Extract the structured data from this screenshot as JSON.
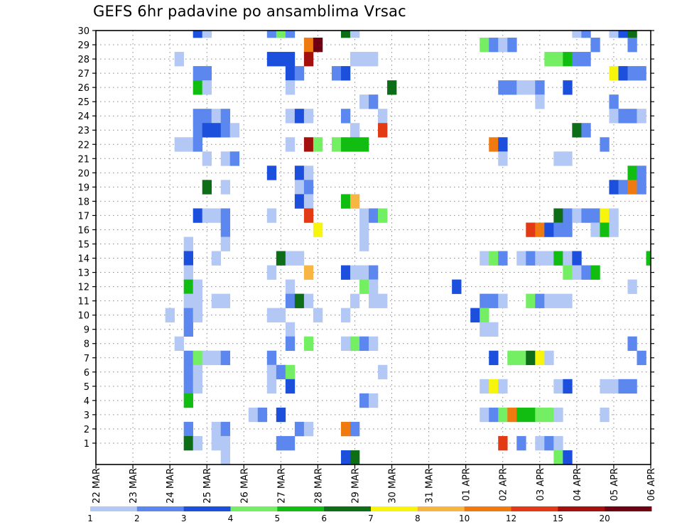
{
  "title": "GEFS 6hr padavine po ansamblima Vrsac",
  "chart_data": {
    "type": "heatmap",
    "title": "GEFS 6hr padavine po ansamblima Vrsac",
    "y_range": [
      0,
      30
    ],
    "y_ticks": [
      1,
      2,
      3,
      4,
      5,
      6,
      7,
      8,
      9,
      10,
      11,
      12,
      13,
      14,
      15,
      16,
      17,
      18,
      19,
      20,
      21,
      22,
      23,
      24,
      25,
      26,
      27,
      28,
      29,
      30
    ],
    "x_range_steps": [
      0,
      60
    ],
    "x_ticks": [
      {
        "step": 0,
        "label": "22 MAR"
      },
      {
        "step": 4,
        "label": "23 MAR"
      },
      {
        "step": 8,
        "label": "24 MAR"
      },
      {
        "step": 12,
        "label": "25 MAR"
      },
      {
        "step": 16,
        "label": "26 MAR"
      },
      {
        "step": 20,
        "label": "27 MAR"
      },
      {
        "step": 24,
        "label": "28 MAR"
      },
      {
        "step": 28,
        "label": "29 MAR"
      },
      {
        "step": 32,
        "label": "30 MAR"
      },
      {
        "step": 36,
        "label": "31 MAR"
      },
      {
        "step": 40,
        "label": "01 APR"
      },
      {
        "step": 44,
        "label": "02 APR"
      },
      {
        "step": 48,
        "label": "03 APR"
      },
      {
        "step": 52,
        "label": "04 APR"
      },
      {
        "step": 56,
        "label": "05 APR"
      },
      {
        "step": 60,
        "label": "06 APR"
      }
    ],
    "grid": true,
    "legend": "bottom",
    "colorbar": {
      "boundaries": [
        "1",
        "2",
        "3",
        "4",
        "5",
        "6",
        "7",
        "8",
        "10",
        "12",
        "15",
        "20"
      ],
      "colors": [
        "#b3c8f5",
        "#5b87ef",
        "#1b4fdc",
        "#74ee62",
        "#12bd12",
        "#0e6e18",
        "#f7f50b",
        "#f7b543",
        "#ef7b10",
        "#e23a14",
        "#a3100e",
        "#6e0012"
      ]
    },
    "cells": [
      {
        "m": 30,
        "c": [
          [
            11,
            2
          ],
          [
            12,
            0
          ],
          [
            19,
            1
          ],
          [
            20,
            3
          ],
          [
            21,
            1
          ],
          [
            27,
            5
          ],
          [
            28,
            0
          ],
          [
            52,
            0
          ],
          [
            53,
            1
          ],
          [
            56,
            0
          ],
          [
            57,
            2
          ],
          [
            58,
            5
          ]
        ]
      },
      {
        "m": 29,
        "c": [
          [
            23,
            8
          ],
          [
            24,
            11
          ],
          [
            42,
            3
          ],
          [
            43,
            1
          ],
          [
            44,
            0
          ],
          [
            45,
            1
          ],
          [
            54,
            1
          ],
          [
            58,
            1
          ]
        ]
      },
      {
        "m": 28,
        "c": [
          [
            9,
            0
          ],
          [
            19,
            2
          ],
          [
            20,
            2
          ],
          [
            21,
            2
          ],
          [
            23,
            10
          ],
          [
            28,
            0
          ],
          [
            29,
            0
          ],
          [
            30,
            0
          ],
          [
            49,
            3
          ],
          [
            50,
            3
          ],
          [
            51,
            4
          ],
          [
            52,
            1
          ],
          [
            53,
            1
          ]
        ]
      },
      {
        "m": 27,
        "c": [
          [
            11,
            1
          ],
          [
            12,
            1
          ],
          [
            21,
            2
          ],
          [
            22,
            1
          ],
          [
            26,
            1
          ],
          [
            27,
            2
          ],
          [
            56,
            6
          ],
          [
            57,
            2
          ],
          [
            58,
            1
          ],
          [
            59,
            1
          ]
        ]
      },
      {
        "m": 26,
        "c": [
          [
            11,
            4
          ],
          [
            12,
            0
          ],
          [
            21,
            0
          ],
          [
            32,
            5
          ],
          [
            44,
            1
          ],
          [
            45,
            1
          ],
          [
            46,
            0
          ],
          [
            47,
            0
          ],
          [
            48,
            1
          ],
          [
            51,
            2
          ]
        ]
      },
      {
        "m": 25,
        "c": [
          [
            29,
            0
          ],
          [
            30,
            1
          ],
          [
            48,
            0
          ],
          [
            56,
            1
          ]
        ]
      },
      {
        "m": 24,
        "c": [
          [
            11,
            1
          ],
          [
            12,
            1
          ],
          [
            13,
            0
          ],
          [
            14,
            1
          ],
          [
            21,
            0
          ],
          [
            22,
            2
          ],
          [
            23,
            0
          ],
          [
            27,
            1
          ],
          [
            31,
            0
          ],
          [
            56,
            0
          ],
          [
            57,
            1
          ],
          [
            58,
            1
          ],
          [
            59,
            0
          ]
        ]
      },
      {
        "m": 23,
        "c": [
          [
            11,
            1
          ],
          [
            12,
            2
          ],
          [
            13,
            2
          ],
          [
            14,
            1
          ],
          [
            15,
            0
          ],
          [
            28,
            0
          ],
          [
            31,
            9
          ],
          [
            52,
            5
          ],
          [
            53,
            1
          ]
        ]
      },
      {
        "m": 22,
        "c": [
          [
            9,
            0
          ],
          [
            10,
            0
          ],
          [
            11,
            1
          ],
          [
            21,
            0
          ],
          [
            23,
            10
          ],
          [
            24,
            3
          ],
          [
            26,
            3
          ],
          [
            27,
            4
          ],
          [
            28,
            4
          ],
          [
            29,
            4
          ],
          [
            43,
            8
          ],
          [
            44,
            2
          ],
          [
            55,
            1
          ]
        ]
      },
      {
        "m": 21,
        "c": [
          [
            12,
            0
          ],
          [
            14,
            0
          ],
          [
            15,
            1
          ],
          [
            44,
            0
          ],
          [
            50,
            0
          ],
          [
            51,
            0
          ]
        ]
      },
      {
        "m": 20,
        "c": [
          [
            19,
            2
          ],
          [
            22,
            2
          ],
          [
            23,
            0
          ],
          [
            58,
            4
          ],
          [
            59,
            1
          ]
        ]
      },
      {
        "m": 19,
        "c": [
          [
            12,
            5
          ],
          [
            14,
            0
          ],
          [
            22,
            0
          ],
          [
            23,
            1
          ],
          [
            56,
            2
          ],
          [
            57,
            1
          ],
          [
            58,
            8
          ],
          [
            59,
            1
          ]
        ]
      },
      {
        "m": 18,
        "c": [
          [
            22,
            2
          ],
          [
            23,
            0
          ],
          [
            27,
            4
          ],
          [
            28,
            7
          ]
        ]
      },
      {
        "m": 17,
        "c": [
          [
            11,
            2
          ],
          [
            12,
            0
          ],
          [
            13,
            0
          ],
          [
            14,
            1
          ],
          [
            19,
            0
          ],
          [
            23,
            9
          ],
          [
            29,
            0
          ],
          [
            30,
            1
          ],
          [
            31,
            3
          ],
          [
            50,
            5
          ],
          [
            51,
            1
          ],
          [
            52,
            0
          ],
          [
            53,
            1
          ],
          [
            54,
            1
          ],
          [
            55,
            6
          ],
          [
            56,
            0
          ]
        ]
      },
      {
        "m": 16,
        "c": [
          [
            14,
            1
          ],
          [
            24,
            6
          ],
          [
            29,
            0
          ],
          [
            47,
            9
          ],
          [
            48,
            8
          ],
          [
            49,
            2
          ],
          [
            50,
            1
          ],
          [
            51,
            1
          ],
          [
            54,
            0
          ],
          [
            55,
            4
          ],
          [
            56,
            0
          ]
        ]
      },
      {
        "m": 15,
        "c": [
          [
            10,
            0
          ],
          [
            14,
            0
          ],
          [
            29,
            0
          ]
        ]
      },
      {
        "m": 14,
        "c": [
          [
            10,
            2
          ],
          [
            13,
            0
          ],
          [
            20,
            5
          ],
          [
            21,
            0
          ],
          [
            22,
            0
          ],
          [
            42,
            0
          ],
          [
            43,
            3
          ],
          [
            44,
            1
          ],
          [
            46,
            0
          ],
          [
            47,
            1
          ],
          [
            48,
            0
          ],
          [
            49,
            0
          ],
          [
            50,
            4
          ],
          [
            51,
            0
          ],
          [
            52,
            2
          ],
          [
            60,
            4
          ]
        ]
      },
      {
        "m": 13,
        "c": [
          [
            10,
            0
          ],
          [
            19,
            0
          ],
          [
            23,
            7
          ],
          [
            27,
            2
          ],
          [
            28,
            0
          ],
          [
            29,
            0
          ],
          [
            30,
            1
          ],
          [
            51,
            3
          ],
          [
            52,
            0
          ],
          [
            53,
            1
          ],
          [
            54,
            4
          ]
        ]
      },
      {
        "m": 12,
        "c": [
          [
            10,
            4
          ],
          [
            11,
            0
          ],
          [
            21,
            0
          ],
          [
            29,
            3
          ],
          [
            30,
            0
          ],
          [
            39,
            2
          ],
          [
            58,
            0
          ]
        ]
      },
      {
        "m": 11,
        "c": [
          [
            10,
            0
          ],
          [
            11,
            0
          ],
          [
            13,
            0
          ],
          [
            14,
            0
          ],
          [
            21,
            1
          ],
          [
            22,
            5
          ],
          [
            23,
            0
          ],
          [
            28,
            0
          ],
          [
            30,
            0
          ],
          [
            31,
            0
          ],
          [
            42,
            1
          ],
          [
            43,
            1
          ],
          [
            44,
            0
          ],
          [
            47,
            3
          ],
          [
            48,
            1
          ],
          [
            49,
            0
          ],
          [
            50,
            0
          ],
          [
            51,
            0
          ]
        ]
      },
      {
        "m": 10,
        "c": [
          [
            8,
            0
          ],
          [
            10,
            1
          ],
          [
            11,
            0
          ],
          [
            19,
            0
          ],
          [
            20,
            0
          ],
          [
            24,
            0
          ],
          [
            27,
            0
          ],
          [
            41,
            2
          ],
          [
            42,
            3
          ]
        ]
      },
      {
        "m": 9,
        "c": [
          [
            10,
            1
          ],
          [
            21,
            0
          ],
          [
            42,
            0
          ],
          [
            43,
            0
          ]
        ]
      },
      {
        "m": 8,
        "c": [
          [
            9,
            0
          ],
          [
            21,
            1
          ],
          [
            23,
            3
          ],
          [
            27,
            0
          ],
          [
            28,
            3
          ],
          [
            29,
            1
          ],
          [
            30,
            0
          ],
          [
            58,
            1
          ]
        ]
      },
      {
        "m": 7,
        "c": [
          [
            10,
            1
          ],
          [
            11,
            3
          ],
          [
            12,
            0
          ],
          [
            13,
            0
          ],
          [
            14,
            1
          ],
          [
            19,
            1
          ],
          [
            43,
            2
          ],
          [
            45,
            3
          ],
          [
            46,
            3
          ],
          [
            47,
            5
          ],
          [
            48,
            6
          ],
          [
            49,
            0
          ],
          [
            59,
            1
          ]
        ]
      },
      {
        "m": 6,
        "c": [
          [
            10,
            1
          ],
          [
            11,
            0
          ],
          [
            19,
            0
          ],
          [
            20,
            1
          ],
          [
            21,
            3
          ],
          [
            31,
            0
          ]
        ]
      },
      {
        "m": 5,
        "c": [
          [
            10,
            1
          ],
          [
            11,
            0
          ],
          [
            19,
            0
          ],
          [
            21,
            2
          ],
          [
            42,
            0
          ],
          [
            43,
            6
          ],
          [
            44,
            0
          ],
          [
            50,
            0
          ],
          [
            51,
            2
          ],
          [
            55,
            0
          ],
          [
            56,
            0
          ],
          [
            57,
            1
          ],
          [
            58,
            1
          ]
        ]
      },
      {
        "m": 4,
        "c": [
          [
            10,
            4
          ],
          [
            29,
            1
          ],
          [
            30,
            0
          ]
        ]
      },
      {
        "m": 3,
        "c": [
          [
            17,
            0
          ],
          [
            18,
            1
          ],
          [
            20,
            2
          ],
          [
            42,
            0
          ],
          [
            43,
            1
          ],
          [
            44,
            3
          ],
          [
            45,
            8
          ],
          [
            46,
            4
          ],
          [
            47,
            4
          ],
          [
            48,
            3
          ],
          [
            49,
            3
          ],
          [
            50,
            0
          ],
          [
            55,
            0
          ]
        ]
      },
      {
        "m": 2,
        "c": [
          [
            10,
            1
          ],
          [
            13,
            0
          ],
          [
            14,
            1
          ],
          [
            22,
            1
          ],
          [
            23,
            0
          ],
          [
            27,
            8
          ],
          [
            28,
            1
          ]
        ]
      },
      {
        "m": 1,
        "c": [
          [
            10,
            5
          ],
          [
            11,
            0
          ],
          [
            13,
            0
          ],
          [
            14,
            0
          ],
          [
            20,
            1
          ],
          [
            21,
            1
          ],
          [
            44,
            9
          ],
          [
            46,
            1
          ],
          [
            48,
            0
          ],
          [
            49,
            1
          ],
          [
            50,
            0
          ]
        ]
      },
      {
        "m": 0,
        "c": [
          [
            14,
            0
          ],
          [
            27,
            2
          ],
          [
            28,
            5
          ],
          [
            50,
            3
          ],
          [
            51,
            2
          ]
        ]
      }
    ]
  }
}
